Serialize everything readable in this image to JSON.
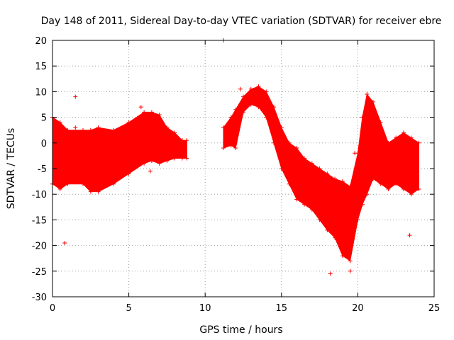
{
  "chart_data": {
    "type": "scatter",
    "title": "Day 148 of 2011, Sidereal Day-to-day VTEC variation (SDTVAR) for receiver ebre",
    "xlabel": "GPS time / hours",
    "ylabel": "SDTVAR / TECUs",
    "xlim": [
      0,
      25
    ],
    "ylim": [
      -30,
      20
    ],
    "xticks": [
      0,
      5,
      10,
      15,
      20,
      25
    ],
    "yticks": [
      -30,
      -25,
      -20,
      -15,
      -10,
      -5,
      0,
      5,
      10,
      15,
      20
    ],
    "grid": true,
    "marker": "+",
    "color": "#ff0000",
    "series": [
      {
        "name": "SDTVAR",
        "band_segments": [
          {
            "x": [
              0.0,
              0.5,
              1.0,
              2.0,
              2.5,
              3.0,
              4.0,
              5.0,
              6.0,
              6.5,
              7.0,
              7.5,
              8.0,
              8.5,
              8.8
            ],
            "upper": [
              5.0,
              4.0,
              2.5,
              2.5,
              2.5,
              3.0,
              2.5,
              4.0,
              6.0,
              6.0,
              5.5,
              3.0,
              2.0,
              0.5,
              0.5
            ],
            "lower": [
              -8.0,
              -9.0,
              -8.0,
              -8.0,
              -9.5,
              -9.5,
              -8.0,
              -6.0,
              -4.0,
              -3.5,
              -4.0,
              -3.5,
              -3.0,
              -3.0,
              -3.0
            ]
          },
          {
            "x": [
              11.2,
              11.7,
              12.0,
              12.5,
              13.0,
              13.5,
              14.0,
              14.5,
              15.0,
              15.5,
              16.0,
              16.5,
              17.0,
              17.5,
              18.0,
              18.5,
              19.0,
              19.5,
              20.0,
              20.3,
              20.6,
              21.0,
              21.5,
              22.0,
              22.5,
              23.0,
              23.5,
              24.0
            ],
            "upper": [
              3.0,
              5.0,
              6.5,
              9.0,
              10.5,
              11.0,
              10.0,
              7.0,
              3.0,
              0.0,
              -1.0,
              -3.0,
              -4.0,
              -5.0,
              -6.0,
              -7.0,
              -7.5,
              -8.5,
              -2.0,
              5.0,
              9.5,
              8.0,
              4.0,
              0.0,
              1.0,
              2.0,
              1.0,
              0.0
            ],
            "lower": [
              -1.0,
              -0.5,
              -1.0,
              6.0,
              7.5,
              7.0,
              5.0,
              0.0,
              -5.0,
              -8.0,
              -11.0,
              -12.0,
              -13.0,
              -15.0,
              -17.0,
              -18.5,
              -22.0,
              -23.0,
              -15.0,
              -12.0,
              -10.0,
              -7.0,
              -8.0,
              -9.0,
              -8.0,
              -9.0,
              -10.0,
              -9.0
            ]
          }
        ],
        "outliers": [
          {
            "x": 11.2,
            "y": 20
          },
          {
            "x": 1.5,
            "y": 9
          },
          {
            "x": 5.8,
            "y": 7
          },
          {
            "x": 0.8,
            "y": -19.5
          },
          {
            "x": 23.4,
            "y": -18
          },
          {
            "x": 12.3,
            "y": 10.5
          },
          {
            "x": 19.8,
            "y": -2
          },
          {
            "x": 1.5,
            "y": 3
          },
          {
            "x": 6.4,
            "y": -5.5
          },
          {
            "x": 18.2,
            "y": -25.5
          },
          {
            "x": 19.5,
            "y": -25
          }
        ]
      }
    ]
  }
}
